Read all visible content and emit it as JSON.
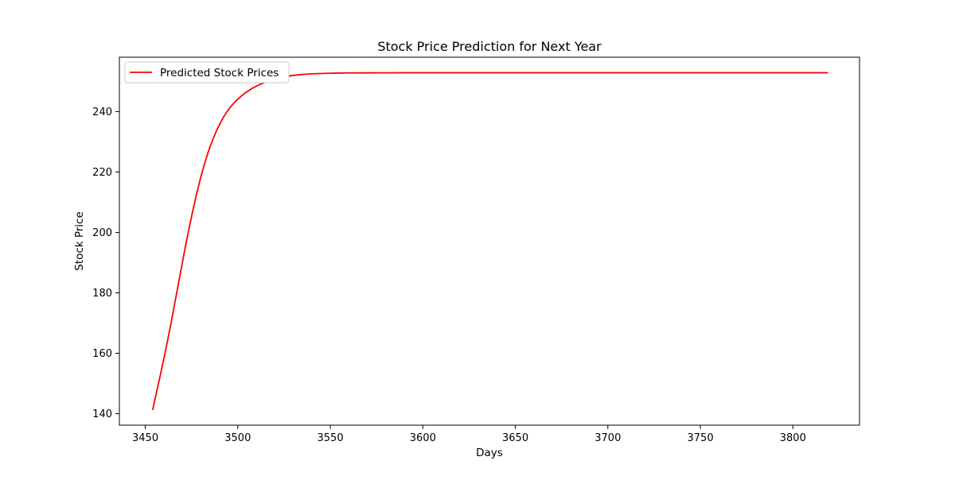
{
  "chart_data": {
    "type": "line",
    "title": "Stock Price Prediction for Next Year",
    "xlabel": "Days",
    "ylabel": "Stock Price",
    "xlim": [
      3436,
      3836
    ],
    "ylim": [
      136.2,
      258
    ],
    "xticks": [
      3450,
      3500,
      3550,
      3600,
      3650,
      3700,
      3750,
      3800
    ],
    "yticks": [
      140,
      160,
      180,
      200,
      220,
      240
    ],
    "grid": false,
    "legend": "top-left",
    "series": [
      {
        "name": "Predicted Stock Prices",
        "color": "#ff0000",
        "x": [
          3454,
          3456,
          3458,
          3460,
          3462,
          3464,
          3466,
          3468,
          3470,
          3472,
          3474,
          3476,
          3478,
          3480,
          3482,
          3484,
          3486,
          3488,
          3490,
          3492,
          3494,
          3496,
          3498,
          3500,
          3502,
          3504,
          3506,
          3508,
          3510,
          3512,
          3514,
          3516,
          3518,
          3520,
          3522,
          3524,
          3526,
          3528,
          3530,
          3535,
          3540,
          3545,
          3550,
          3555,
          3560,
          3570,
          3580,
          3590,
          3600,
          3650,
          3700,
          3750,
          3800,
          3819
        ],
        "y": [
          141.2,
          146.9,
          152.4,
          158.1,
          164.0,
          170.3,
          176.8,
          183.3,
          189.9,
          196.3,
          202.3,
          208.1,
          213.4,
          218.3,
          222.7,
          226.6,
          230.0,
          233.0,
          235.6,
          237.9,
          239.8,
          241.5,
          242.9,
          244.1,
          245.2,
          246.2,
          247.0,
          247.8,
          248.4,
          249.0,
          249.5,
          250.0,
          250.4,
          250.8,
          251.1,
          251.4,
          251.6,
          251.8,
          252.0,
          252.3,
          252.5,
          252.6,
          252.7,
          252.75,
          252.8,
          252.82,
          252.84,
          252.85,
          252.85,
          252.85,
          252.85,
          252.85,
          252.85,
          252.85
        ]
      }
    ]
  }
}
